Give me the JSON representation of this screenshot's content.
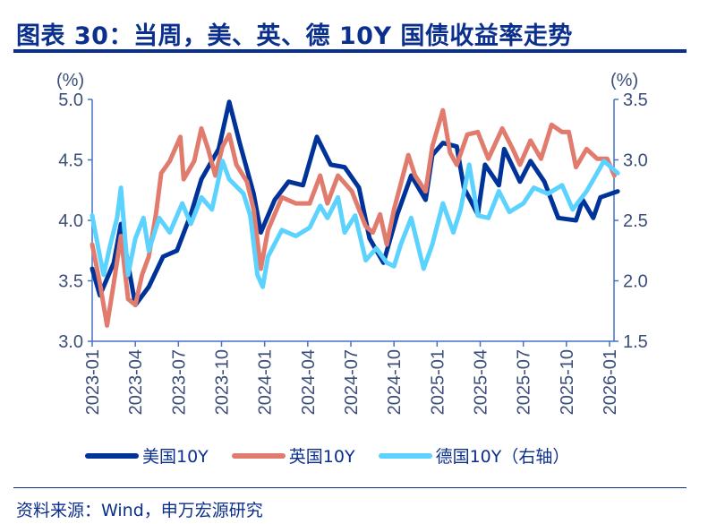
{
  "title": "图表 30：当周，美、英、德 10Y 国债收益率走势",
  "source": "资料来源：Wind，申万宏源研究",
  "chart_data": {
    "type": "line",
    "title": "图表 30：当周，美、英、德 10Y 国债收益率走势",
    "y_left": {
      "unit_label": "(%)",
      "range": [
        3.0,
        5.0
      ],
      "ticks": [
        "3.0",
        "3.5",
        "4.0",
        "4.5",
        "5.0"
      ]
    },
    "y_right": {
      "unit_label": "(%)",
      "range": [
        1.5,
        3.5
      ],
      "ticks": [
        "1.5",
        "2.0",
        "2.5",
        "3.0",
        "3.5"
      ]
    },
    "x_ticks": [
      "2023-01",
      "2023-04",
      "2023-07",
      "2023-10",
      "2024-01",
      "2024-04",
      "2024-07",
      "2024-10",
      "2025-01",
      "2025-04",
      "2025-07",
      "2025-10",
      "2026-01"
    ],
    "x_range": [
      "2023-01-01",
      "2026-01-01"
    ],
    "grid": false,
    "legend_position": "bottom",
    "series": [
      {
        "name": "美国10Y",
        "axis": "left",
        "color": "#003399",
        "points": [
          [
            "2023-01-01",
            3.6
          ],
          [
            "2023-01-17",
            3.38
          ],
          [
            "2023-02-16",
            3.65
          ],
          [
            "2023-03-01",
            3.97
          ],
          [
            "2023-04-01",
            3.3
          ],
          [
            "2023-04-29",
            3.45
          ],
          [
            "2023-05-29",
            3.7
          ],
          [
            "2023-06-28",
            3.75
          ],
          [
            "2023-07-27",
            4.05
          ],
          [
            "2023-08-19",
            4.34
          ],
          [
            "2023-09-25",
            4.59
          ],
          [
            "2023-10-17",
            4.98
          ],
          [
            "2023-11-09",
            4.64
          ],
          [
            "2023-12-08",
            4.22
          ],
          [
            "2023-12-23",
            3.9
          ],
          [
            "2024-01-22",
            4.17
          ],
          [
            "2024-02-21",
            4.32
          ],
          [
            "2024-03-21",
            4.29
          ],
          [
            "2024-04-20",
            4.69
          ],
          [
            "2024-05-19",
            4.46
          ],
          [
            "2024-06-18",
            4.44
          ],
          [
            "2024-07-18",
            4.27
          ],
          [
            "2024-08-10",
            3.85
          ],
          [
            "2024-09-09",
            3.65
          ],
          [
            "2024-10-08",
            4.05
          ],
          [
            "2024-11-07",
            4.37
          ],
          [
            "2024-12-07",
            4.17
          ],
          [
            "2024-12-21",
            4.54
          ],
          [
            "2025-01-13",
            4.64
          ],
          [
            "2025-02-12",
            4.61
          ],
          [
            "2025-02-27",
            4.27
          ],
          [
            "2025-03-26",
            4.05
          ],
          [
            "2025-04-11",
            4.46
          ],
          [
            "2025-05-10",
            4.29
          ],
          [
            "2025-05-21",
            4.59
          ],
          [
            "2025-06-24",
            4.32
          ],
          [
            "2025-07-16",
            4.49
          ],
          [
            "2025-08-15",
            4.32
          ],
          [
            "2025-09-14",
            4.02
          ],
          [
            "2025-10-21",
            4.0
          ],
          [
            "2025-11-05",
            4.17
          ],
          [
            "2025-11-27",
            4.02
          ],
          [
            "2025-12-12",
            4.19
          ],
          [
            "2026-01-18",
            4.24
          ]
        ]
      },
      {
        "name": "英国10Y",
        "axis": "left",
        "color": "#E07B6E",
        "points": [
          [
            "2023-01-01",
            3.8
          ],
          [
            "2023-01-17",
            3.48
          ],
          [
            "2023-02-02",
            3.13
          ],
          [
            "2023-02-16",
            3.48
          ],
          [
            "2023-03-01",
            3.87
          ],
          [
            "2023-03-16",
            3.35
          ],
          [
            "2023-04-01",
            3.3
          ],
          [
            "2023-04-15",
            3.55
          ],
          [
            "2023-04-29",
            3.7
          ],
          [
            "2023-05-14",
            4.05
          ],
          [
            "2023-05-25",
            4.39
          ],
          [
            "2023-06-13",
            4.49
          ],
          [
            "2023-07-05",
            4.69
          ],
          [
            "2023-07-12",
            4.34
          ],
          [
            "2023-08-04",
            4.49
          ],
          [
            "2023-08-19",
            4.76
          ],
          [
            "2023-09-03",
            4.59
          ],
          [
            "2023-09-18",
            4.37
          ],
          [
            "2023-10-03",
            4.61
          ],
          [
            "2023-10-17",
            4.71
          ],
          [
            "2023-11-02",
            4.46
          ],
          [
            "2023-11-24",
            4.32
          ],
          [
            "2023-12-08",
            4.09
          ],
          [
            "2023-12-23",
            3.6
          ],
          [
            "2024-01-08",
            3.92
          ],
          [
            "2024-02-07",
            4.19
          ],
          [
            "2024-03-06",
            4.14
          ],
          [
            "2024-04-05",
            4.14
          ],
          [
            "2024-04-27",
            4.37
          ],
          [
            "2024-05-12",
            4.14
          ],
          [
            "2024-06-04",
            4.37
          ],
          [
            "2024-07-03",
            4.24
          ],
          [
            "2024-08-02",
            3.95
          ],
          [
            "2024-08-17",
            3.9
          ],
          [
            "2024-09-02",
            4.05
          ],
          [
            "2024-09-16",
            3.8
          ],
          [
            "2024-10-01",
            4.09
          ],
          [
            "2024-11-01",
            4.54
          ],
          [
            "2024-11-15",
            4.37
          ],
          [
            "2024-12-07",
            4.24
          ],
          [
            "2024-12-21",
            4.61
          ],
          [
            "2025-01-13",
            4.91
          ],
          [
            "2025-01-28",
            4.56
          ],
          [
            "2025-02-12",
            4.46
          ],
          [
            "2025-03-04",
            4.71
          ],
          [
            "2025-03-26",
            4.73
          ],
          [
            "2025-04-18",
            4.51
          ],
          [
            "2025-05-17",
            4.76
          ],
          [
            "2025-06-09",
            4.59
          ],
          [
            "2025-06-24",
            4.46
          ],
          [
            "2025-07-16",
            4.66
          ],
          [
            "2025-08-08",
            4.51
          ],
          [
            "2025-08-30",
            4.79
          ],
          [
            "2025-09-22",
            4.73
          ],
          [
            "2025-10-06",
            4.73
          ],
          [
            "2025-10-21",
            4.44
          ],
          [
            "2025-11-13",
            4.59
          ],
          [
            "2025-12-05",
            4.51
          ],
          [
            "2025-12-26",
            4.51
          ],
          [
            "2026-01-11",
            4.37
          ]
        ]
      },
      {
        "name": "德国10Y（右轴）",
        "axis": "right",
        "color": "#5CD2FF",
        "points": [
          [
            "2023-01-01",
            2.54
          ],
          [
            "2023-01-17",
            2.2
          ],
          [
            "2023-01-25",
            2.05
          ],
          [
            "2023-02-09",
            2.3
          ],
          [
            "2023-02-23",
            2.52
          ],
          [
            "2023-03-01",
            2.77
          ],
          [
            "2023-03-16",
            2.05
          ],
          [
            "2023-04-01",
            2.35
          ],
          [
            "2023-04-18",
            2.52
          ],
          [
            "2023-04-29",
            2.25
          ],
          [
            "2023-05-21",
            2.52
          ],
          [
            "2023-06-13",
            2.4
          ],
          [
            "2023-07-09",
            2.64
          ],
          [
            "2023-07-27",
            2.47
          ],
          [
            "2023-08-19",
            2.69
          ],
          [
            "2023-09-11",
            2.59
          ],
          [
            "2023-10-03",
            2.99
          ],
          [
            "2023-10-17",
            2.84
          ],
          [
            "2023-11-17",
            2.72
          ],
          [
            "2023-12-01",
            2.54
          ],
          [
            "2023-12-16",
            2.05
          ],
          [
            "2023-12-27",
            1.95
          ],
          [
            "2024-01-08",
            2.2
          ],
          [
            "2024-02-07",
            2.42
          ],
          [
            "2024-03-06",
            2.37
          ],
          [
            "2024-04-05",
            2.44
          ],
          [
            "2024-04-27",
            2.62
          ],
          [
            "2024-05-12",
            2.52
          ],
          [
            "2024-06-04",
            2.69
          ],
          [
            "2024-06-18",
            2.4
          ],
          [
            "2024-07-10",
            2.54
          ],
          [
            "2024-08-02",
            2.17
          ],
          [
            "2024-08-24",
            2.27
          ],
          [
            "2024-09-16",
            2.15
          ],
          [
            "2024-10-01",
            2.12
          ],
          [
            "2024-10-15",
            2.3
          ],
          [
            "2024-11-07",
            2.52
          ],
          [
            "2024-12-03",
            2.1
          ],
          [
            "2024-12-21",
            2.3
          ],
          [
            "2025-01-13",
            2.64
          ],
          [
            "2025-02-05",
            2.4
          ],
          [
            "2025-02-20",
            2.59
          ],
          [
            "2025-03-08",
            2.96
          ],
          [
            "2025-03-26",
            2.54
          ],
          [
            "2025-04-18",
            2.52
          ],
          [
            "2025-05-10",
            2.74
          ],
          [
            "2025-06-02",
            2.57
          ],
          [
            "2025-07-01",
            2.64
          ],
          [
            "2025-07-23",
            2.77
          ],
          [
            "2025-08-22",
            2.72
          ],
          [
            "2025-09-22",
            2.79
          ],
          [
            "2025-10-14",
            2.59
          ],
          [
            "2025-11-13",
            2.74
          ],
          [
            "2025-12-05",
            2.89
          ],
          [
            "2025-12-19",
            2.99
          ],
          [
            "2026-01-18",
            2.89
          ]
        ]
      }
    ]
  }
}
